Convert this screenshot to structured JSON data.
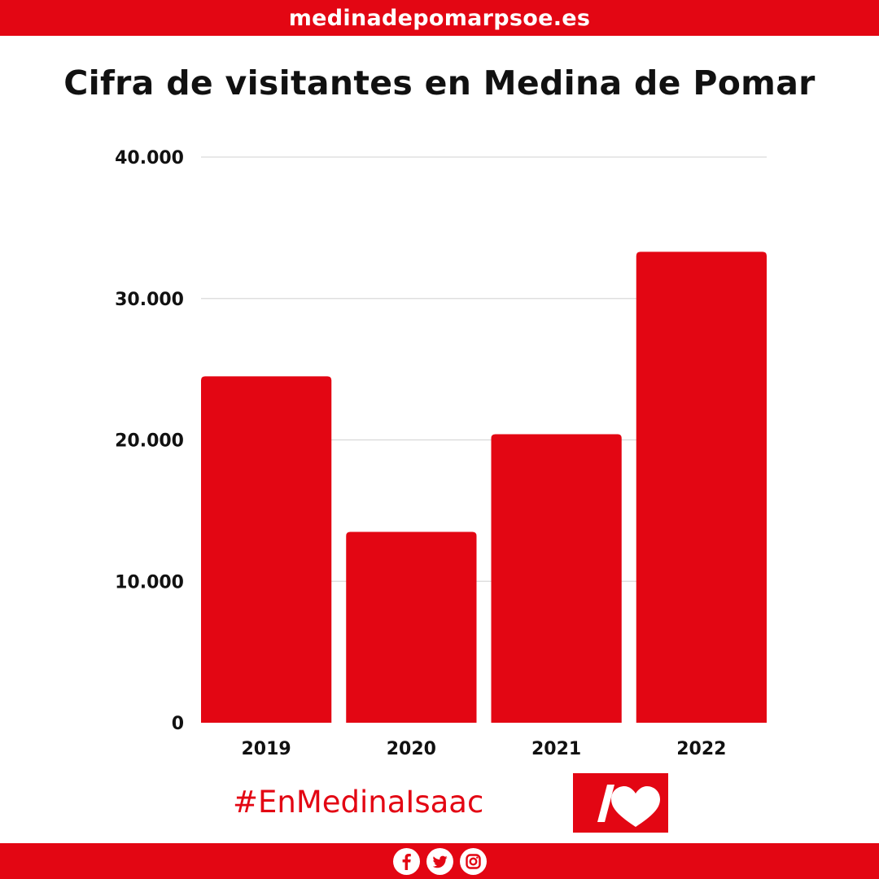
{
  "header": {
    "site": "medinadepomarpsoe.es"
  },
  "colors": {
    "brand": "#e30613",
    "text": "#111111",
    "grid": "#d9d9d9"
  },
  "chart_data": {
    "type": "bar",
    "title": "Cifra de visitantes en Medina de Pomar",
    "categories": [
      "2019",
      "2020",
      "2021",
      "2022"
    ],
    "values": [
      24500,
      13500,
      20400,
      33300
    ],
    "ylim": [
      0,
      40000
    ],
    "yticks": [
      0,
      10000,
      20000,
      30000,
      40000
    ],
    "ytick_labels": [
      "0",
      "10.000",
      "20.000",
      "30.000",
      "40.000"
    ],
    "grid": true,
    "legend": "none",
    "color": "#e30613"
  },
  "footer": {
    "hashtag": "#EnMedinaIsaac",
    "logo_icon": "psoe-slash-heart-icon",
    "social": [
      "facebook-icon",
      "twitter-icon",
      "instagram-icon"
    ]
  }
}
